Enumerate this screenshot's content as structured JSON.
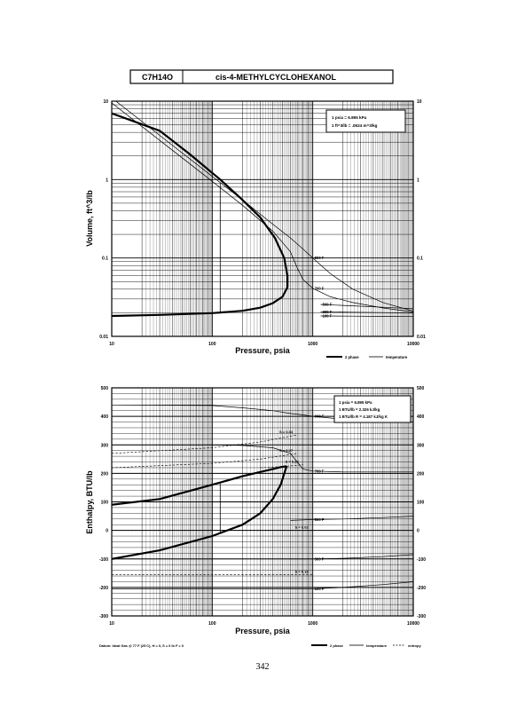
{
  "header": {
    "formula": "C7H14O",
    "name": "cis-4-METHYLCYCLOHEXANOL"
  },
  "page_number": "342",
  "chart_data": [
    {
      "type": "line",
      "xlabel": "Pressure,  psia",
      "ylabel": "Volume, ft^3/lb",
      "xscale": "log",
      "yscale": "log",
      "xlim": [
        10,
        10000
      ],
      "ylim": [
        0.01,
        10
      ],
      "grid": true,
      "x_ticks": [
        "10",
        "100",
        "1000",
        "10000"
      ],
      "y_ticks": [
        "10",
        "1",
        "0.1",
        "0.01"
      ],
      "conversion_box": [
        "1 psia  =  6.895 kPa",
        "1 ft^3/lb  =  .0624 m^3/kg"
      ],
      "legend": [
        "2 phase",
        "temperature"
      ],
      "two_phase": {
        "liquid": {
          "x": [
            10,
            30,
            100,
            200,
            300,
            400,
            500,
            560
          ],
          "y": [
            0.0182,
            0.0188,
            0.0198,
            0.0212,
            0.0232,
            0.0265,
            0.032,
            0.042
          ]
        },
        "vapor": {
          "x": [
            560,
            560,
            520,
            420,
            300,
            200,
            120,
            60,
            30,
            10
          ],
          "y": [
            0.042,
            0.06,
            0.1,
            0.18,
            0.33,
            0.55,
            1.0,
            2.1,
            4.2,
            7.0
          ]
        },
        "tie_line": {
          "x": [
            120,
            120
          ],
          "y": [
            0.0195,
            0.9
          ]
        }
      },
      "isotherms": [
        {
          "label": "800 F",
          "x": [
            10,
            50,
            100,
            200,
            400,
            600,
            800,
            1000,
            1500,
            2500,
            5000,
            10000
          ],
          "y": [
            11,
            2.2,
            1.1,
            0.55,
            0.27,
            0.18,
            0.13,
            0.1,
            0.063,
            0.04,
            0.027,
            0.021
          ]
        },
        {
          "label": "700 F",
          "x": [
            10,
            50,
            100,
            200,
            400,
            600,
            700,
            800,
            1000,
            1500,
            2500,
            5000,
            10000
          ],
          "y": [
            9.5,
            1.9,
            0.95,
            0.47,
            0.22,
            0.12,
            0.075,
            0.053,
            0.041,
            0.032,
            0.027,
            0.023,
            0.0205
          ]
        },
        {
          "label": "500 F",
          "x": [
            1200,
            2500,
            5000,
            10000
          ],
          "y": [
            0.0255,
            0.0245,
            0.0235,
            0.0225
          ]
        },
        {
          "label": "300 F",
          "x": [
            1200,
            2500,
            5000,
            10000
          ],
          "y": [
            0.0205,
            0.0203,
            0.0201,
            0.0198
          ]
        },
        {
          "label": "100 F",
          "x": [
            1200,
            2500,
            5000,
            10000
          ],
          "y": [
            0.0182,
            0.0181,
            0.018,
            0.0179
          ]
        }
      ]
    },
    {
      "type": "line",
      "xlabel": "Pressure,  psia",
      "ylabel": "Enthalpy, BTU/lb",
      "xscale": "log",
      "xlim": [
        10,
        10000
      ],
      "ylim": [
        -300,
        500
      ],
      "grid": true,
      "x_ticks": [
        "10",
        "100",
        "1000",
        "10000"
      ],
      "y_ticks": [
        "500",
        "400",
        "300",
        "200",
        "100",
        "0",
        "-100",
        "-200",
        "-300"
      ],
      "conversion_box": [
        "1 psia  =  6.895 kPa",
        "1 BTU/lb  =  2.326 kJ/kg",
        "1 BTU/lb R  =  4.187 kJ/kg K"
      ],
      "legend": [
        "2 phase",
        "temperature",
        "entropy"
      ],
      "footnote": "Datum: Ideal Gas @ 77 F (25 C),  H = 0,  S = 0 lb F = 0",
      "two_phase": {
        "liquid": {
          "x": [
            10,
            30,
            100,
            200,
            300,
            400,
            480,
            550
          ],
          "y": [
            -100,
            -70,
            -20,
            20,
            60,
            110,
            160,
            225
          ]
        },
        "vapor": {
          "x": [
            10,
            30,
            100,
            200,
            300,
            400,
            480,
            550
          ],
          "y": [
            90,
            110,
            160,
            190,
            205,
            215,
            222,
            225
          ]
        },
        "tie_line": {
          "x": [
            120,
            120
          ],
          "y": [
            -10,
            170
          ]
        }
      },
      "isotherms": [
        {
          "label": "900 F",
          "x": [
            10,
            100,
            200,
            400,
            600,
            800,
            1000,
            2000,
            5000,
            10000
          ],
          "y": [
            440,
            438,
            430,
            420,
            410,
            405,
            400,
            390,
            385,
            380
          ]
        },
        {
          "label": "700 F",
          "x": [
            10,
            100,
            200,
            400,
            600,
            700,
            800,
            1000,
            2000,
            5000,
            10000
          ],
          "y": [
            300,
            300,
            298,
            290,
            270,
            240,
            215,
            208,
            205,
            205,
            205
          ]
        },
        {
          "label": "500 F",
          "x": [
            600,
            1000,
            2000,
            5000,
            10000
          ],
          "y": [
            35,
            38,
            40,
            45,
            50
          ]
        },
        {
          "label": "300 F",
          "x": [
            10,
            100,
            1000,
            2000,
            5000,
            10000
          ],
          "y": [
            -100,
            -100,
            -100,
            -98,
            -92,
            -85
          ]
        },
        {
          "label": "100 F",
          "x": [
            10,
            100,
            1000,
            2000,
            5000,
            10000
          ],
          "y": [
            -205,
            -205,
            -205,
            -200,
            -190,
            -180
          ]
        }
      ],
      "entropy_lines": [
        {
          "label": "S = 0.34",
          "x": [
            10,
            100,
            300,
            500,
            700
          ],
          "y": [
            270,
            290,
            310,
            325,
            335
          ]
        },
        {
          "label": "S = 0.27",
          "x": [
            10,
            100,
            300,
            500,
            700
          ],
          "y": [
            220,
            235,
            250,
            262,
            270
          ]
        },
        {
          "label": "S = 0.22",
          "x": [
            300,
            550,
            800
          ],
          "y": [
            220,
            225,
            230
          ]
        },
        {
          "label": "S = 0.02",
          "x": [
            10,
            100,
            300,
            600,
            1000
          ],
          "y": [
            0,
            0,
            0,
            0,
            0
          ]
        },
        {
          "label": "S = 0.18",
          "x": [
            10,
            100,
            300,
            600,
            1000
          ],
          "y": [
            -155,
            -155,
            -155,
            -155,
            -155
          ]
        }
      ]
    }
  ]
}
